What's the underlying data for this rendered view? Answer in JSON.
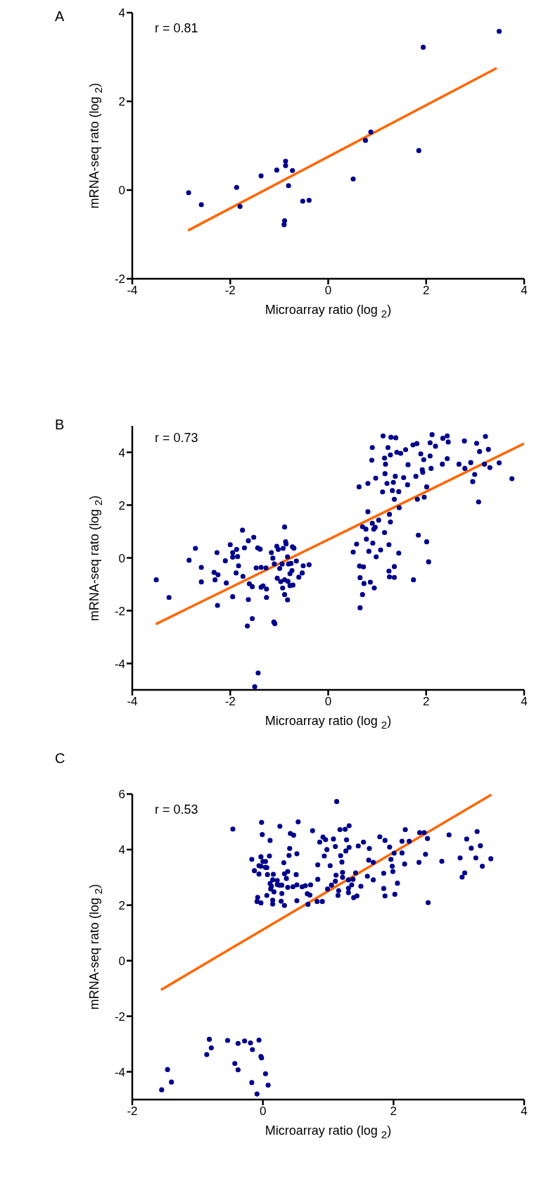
{
  "chart_data": [
    {
      "type": "scatter",
      "title": "A",
      "xlabel": "Microarray ratio (log $_{2}$)",
      "ylabel": "mRNA-seq rato (log $_{2}$)",
      "annotations": [
        "r = 0.81"
      ],
      "xlim": [
        -4,
        4
      ],
      "xticks": [
        -4,
        -2,
        0,
        2,
        4
      ],
      "ylim": [
        -2,
        4
      ],
      "yticks": [
        -2,
        0,
        2,
        4
      ],
      "series": [
        {
          "type": "scatter",
          "marker": "circle",
          "color": "#00008b",
          "x": [
            -2.85,
            -2.59,
            -1.87,
            -1.8,
            -1.37,
            -1.05,
            -0.87,
            -0.87,
            -0.73,
            -0.81,
            -0.52,
            -0.39,
            -0.89,
            -0.9,
            0.51,
            0.76,
            0.87,
            1.85,
            1.94,
            3.49
          ],
          "values": [
            -0.06,
            -0.33,
            0.06,
            -0.37,
            0.32,
            0.45,
            0.65,
            0.55,
            0.44,
            0.1,
            -0.25,
            -0.23,
            -0.69,
            -0.78,
            0.25,
            1.12,
            1.31,
            0.89,
            3.22,
            3.58
          ]
        },
        {
          "type": "line",
          "color": "#ff6600",
          "x": [
            -2.86,
            3.44
          ],
          "values": [
            -0.91,
            2.75
          ]
        }
      ]
    },
    {
      "type": "scatter",
      "title": "B",
      "xlabel": "Microarray ratio (log $_{2}$)",
      "ylabel": "mRNA-seq rato (log $_{2}$)",
      "annotations": [
        "r = 0.73"
      ],
      "xlim": [
        -4,
        4
      ],
      "xticks": [
        -4,
        -2,
        0,
        2,
        4
      ],
      "ylim": [
        -5,
        5
      ],
      "yticks": [
        -4,
        -2,
        0,
        2,
        4
      ],
      "series": [
        {
          "type": "scatter",
          "marker": "circle",
          "color": "#00008b",
          "x": [
            -3.51,
            -3.25,
            -2.84,
            -2.71,
            -2.59,
            -2.59,
            -2.33,
            -2.31,
            -2.27,
            -2.25,
            -2.26,
            -2.1,
            -2.08,
            -2.0,
            -1.95,
            -1.95,
            -1.88,
            -1.87,
            -1.85,
            -1.83,
            -1.95,
            -1.75,
            -1.74,
            -1.71,
            -1.63,
            -1.63,
            -1.61,
            -1.55,
            -1.55,
            -1.52,
            -1.47,
            -1.44,
            -1.39,
            -1.37,
            -1.37,
            -1.33,
            -1.27,
            -1.26,
            -1.26,
            -1.65,
            -1.11,
            -1.09,
            -1.43,
            -1.5,
            -1.16,
            -1.13,
            -1.1,
            -1.05,
            -1.02,
            -0.99,
            -1.04,
            -0.97,
            -0.92,
            -0.89,
            -0.87,
            -0.86,
            -0.94,
            -0.89,
            -0.83,
            -0.81,
            -0.78,
            -0.76,
            -0.73,
            -0.7,
            -0.74,
            -0.72,
            -0.83,
            -0.89,
            -0.93,
            -0.65,
            -0.6,
            -0.53,
            -0.51,
            -0.39,
            -0.82,
            -0.78,
            0.51,
            0.58,
            0.63,
            0.64,
            0.65,
            0.65,
            0.7,
            0.72,
            0.7,
            0.73,
            0.77,
            0.78,
            0.81,
            0.81,
            0.83,
            0.86,
            0.89,
            0.9,
            0.9,
            0.91,
            0.93,
            0.94,
            0.96,
            0.97,
            0.98,
            1.03,
            1.07,
            1.11,
            1.12,
            1.15,
            1.16,
            1.15,
            1.17,
            1.2,
            1.22,
            1.24,
            1.24,
            1.25,
            1.25,
            1.27,
            1.27,
            1.28,
            1.31,
            1.33,
            1.35,
            1.35,
            1.35,
            1.37,
            1.38,
            1.4,
            1.44,
            1.44,
            1.45,
            1.48,
            1.54,
            1.58,
            1.62,
            1.63,
            1.73,
            1.74,
            1.79,
            1.81,
            1.82,
            1.84,
            1.89,
            1.92,
            1.93,
            1.95,
            1.96,
            2.01,
            2.01,
            2.05,
            2.08,
            2.08,
            2.1,
            2.12,
            2.19,
            2.34,
            2.33,
            2.43,
            2.43,
            2.45,
            2.67,
            2.78,
            2.79,
            2.91,
            2.95,
            2.99,
            3.03,
            3.07,
            3.09,
            3.19,
            3.21,
            3.27,
            3.3,
            3.49,
            3.75
          ],
          "values": [
            -0.83,
            -1.5,
            -0.09,
            0.36,
            -0.36,
            -0.91,
            -0.55,
            -0.83,
            0.2,
            -0.64,
            -1.8,
            -0.11,
            -0.95,
            0.5,
            0.2,
            0.03,
            -0.57,
            0.32,
            0.05,
            -0.3,
            -1.47,
            1.05,
            -0.7,
            0.38,
            0.65,
            -1.58,
            -0.98,
            -1.09,
            -2.3,
            0.78,
            -0.38,
            0.38,
            0.33,
            -0.36,
            -1.11,
            -1.06,
            -0.38,
            -1.18,
            -1.5,
            -2.58,
            -2.43,
            -2.49,
            -4.36,
            -4.88,
            0.2,
            -0.01,
            -0.23,
            0.44,
            0.32,
            -0.4,
            -0.77,
            -0.9,
            0.36,
            1.17,
            0.61,
            0.53,
            -0.23,
            -0.83,
            0.04,
            -0.23,
            -0.6,
            -0.21,
            0.42,
            0.37,
            -0.48,
            -1.03,
            -1.59,
            -1.39,
            -1.14,
            -0.12,
            -0.73,
            -0.57,
            -0.3,
            -0.26,
            -0.89,
            -1.05,
            0.22,
            0.52,
            2.69,
            -0.31,
            -1.89,
            -0.75,
            -1.39,
            -0.34,
            1.18,
            -0.97,
            1.09,
            0.71,
            1.75,
            2.82,
            0.25,
            -0.92,
            3.7,
            4.18,
            1.31,
            0.56,
            1.09,
            -1.14,
            1.16,
            3.02,
            0.04,
            1.43,
            0.3,
            2.5,
            4.62,
            3.78,
            3.19,
            0.96,
            3.55,
            2.82,
            4.18,
            0.5,
            -0.5,
            -0.72,
            1.65,
            1.36,
            3.9,
            4.57,
            2.55,
            2.86,
            2.22,
            -0.33,
            -0.74,
            3.09,
            4.55,
            4.0,
            2.51,
            0.18,
            1.9,
            3.96,
            3.04,
            4.1,
            2.77,
            3.53,
            4.28,
            -0.83,
            3.09,
            4.33,
            2.22,
            0.86,
            3.94,
            3.34,
            3.24,
            3.72,
            2.3,
            2.69,
            0.61,
            -0.15,
            4.36,
            3.86,
            3.39,
            4.67,
            4.23,
            4.53,
            3.55,
            3.76,
            4.62,
            4.39,
            3.55,
            4.43,
            3.39,
            3.61,
            2.89,
            3.16,
            4.34,
            2.12,
            4.03,
            3.55,
            4.6,
            4.11,
            3.42,
            3.6,
            3.0
          ]
        },
        {
          "type": "line",
          "color": "#ff6600",
          "x": [
            -3.52,
            4.0
          ],
          "values": [
            -2.51,
            4.33
          ]
        }
      ]
    },
    {
      "type": "scatter",
      "title": "C",
      "xlabel": "Microarray ratio (log $_{2}$)",
      "ylabel": "mRNA-seq rato (log $_{2}$)",
      "annotations": [
        "r = 0.53"
      ],
      "xlim": [
        -2,
        4
      ],
      "xticks": [
        -2,
        0,
        2,
        4
      ],
      "ylim": [
        -5,
        6
      ],
      "yticks": [
        -4,
        -2,
        0,
        2,
        4,
        6
      ],
      "series": [
        {
          "type": "scatter",
          "marker": "circle",
          "color": "#00008b",
          "x": [
            -1.55,
            -1.46,
            -1.4,
            -0.86,
            -0.82,
            -0.79,
            -0.54,
            -0.43,
            -0.38,
            -0.38,
            -0.28,
            -0.19,
            -0.16,
            -0.17,
            -0.06,
            -0.03,
            -0.02,
            0.04,
            0.08,
            -0.09,
            -0.46,
            -0.02,
            0.26,
            0.54,
            1.13,
            -0.01,
            0.11,
            0.42,
            0.47,
            0.76,
            0.92,
            0.96,
            1.08,
            1.18,
            1.26,
            1.32,
            1.28,
            1.32,
            0.87,
            0.98,
            1.11,
            1.27,
            1.46,
            1.54,
            1.63,
            1.79,
            1.87,
            1.94,
            2.13,
            2.18,
            2.24,
            2.4,
            2.47,
            2.52,
            2.85,
            3.12,
            3.28,
            3.19,
            3.33,
            2.74,
            3.02,
            3.26,
            3.49,
            3.36,
            3.09,
            3.05,
            2.53,
            2.49,
            2.39,
            2.17,
            2.13,
            2.01,
            1.98,
            1.99,
            2.06,
            2.02,
            1.87,
            1.85,
            1.85,
            1.96,
            1.69,
            1.62,
            1.6,
            1.69,
            1.5,
            1.44,
            1.39,
            1.38,
            1.36,
            1.42,
            1.31,
            1.31,
            1.31,
            1.22,
            1.22,
            1.21,
            1.19,
            1.12,
            1.16,
            1.15,
            1.11,
            1.05,
            0.99,
            1.03,
            0.94,
            0.84,
            0.84,
            0.91,
            0.83,
            0.69,
            0.72,
            0.68,
            0.73,
            0.65,
            0.6,
            0.52,
            0.46,
            0.52,
            0.52,
            0.51,
            0.41,
            0.4,
            0.38,
            0.38,
            0.33,
            0.36,
            0.32,
            0.29,
            0.29,
            0.28,
            0.33,
            0.25,
            0.22,
            0.22,
            0.17,
            0.16,
            0.15,
            0.13,
            0.12,
            0.11,
            0.15,
            0.15,
            0.1,
            0.06,
            0.07,
            0.04,
            0.06,
            0.04,
            0.0,
            -0.03,
            -0.03,
            -0.06,
            -0.06,
            -0.13,
            -0.17,
            -0.08,
            -0.09,
            -0.03
          ],
          "values": [
            -4.65,
            -3.92,
            -4.37,
            -3.38,
            -2.83,
            -3.14,
            -2.87,
            -3.7,
            -2.98,
            -3.93,
            -2.89,
            -2.96,
            -3.2,
            -4.39,
            -2.86,
            -3.45,
            -3.5,
            -4.07,
            -4.48,
            -4.8,
            4.74,
            4.98,
            4.84,
            5.0,
            5.73,
            4.54,
            4.33,
            4.58,
            4.52,
            4.68,
            4.45,
            4.36,
            4.38,
            4.72,
            4.73,
            4.86,
            4.35,
            4.08,
            4.27,
            4.0,
            4.11,
            3.95,
            4.13,
            4.27,
            4.04,
            4.46,
            4.33,
            4.09,
            4.3,
            4.72,
            4.3,
            4.61,
            4.61,
            4.4,
            4.53,
            4.38,
            4.65,
            4.05,
            4.14,
            3.58,
            3.7,
            3.7,
            3.67,
            3.4,
            3.16,
            3.01,
            2.09,
            3.83,
            3.54,
            3.48,
            3.88,
            3.87,
            3.4,
            3.21,
            2.79,
            2.39,
            2.33,
            2.6,
            3.15,
            3.65,
            3.54,
            3.62,
            3.04,
            2.91,
            2.68,
            2.33,
            2.27,
            2.93,
            2.73,
            3.16,
            2.91,
            2.61,
            2.45,
            3.18,
            3.0,
            3.55,
            3.78,
            3.08,
            2.52,
            2.35,
            2.86,
            2.72,
            2.58,
            3.42,
            3.77,
            2.93,
            3.45,
            2.13,
            2.13,
            2.03,
            2.36,
            2.41,
            2.73,
            2.7,
            2.66,
            2.73,
            2.66,
            2.16,
            3.85,
            3.1,
            4.04,
            3.79,
            2.64,
            3.21,
            3.13,
            2.96,
            3.53,
            2.72,
            2.42,
            2.14,
            1.99,
            2.72,
            2.89,
            2.74,
            2.48,
            3.11,
            2.91,
            2.68,
            2.58,
            2.78,
            2.04,
            2.18,
            3.77,
            2.35,
            3.1,
            3.36,
            3.35,
            3.57,
            3.57,
            3.74,
            3.4,
            3.42,
            3.12,
            3.24,
            3.65,
            2.28,
            2.13,
            2.08
          ]
        },
        {
          "type": "line",
          "color": "#ff6600",
          "x": [
            -1.56,
            3.5
          ],
          "values": [
            -1.05,
            5.98
          ]
        }
      ]
    }
  ]
}
